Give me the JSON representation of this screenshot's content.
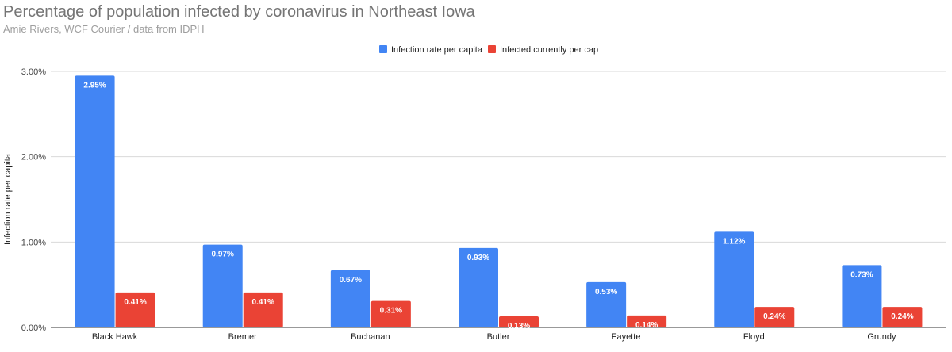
{
  "chart_data": {
    "type": "bar",
    "title": "Percentage of population infected by coronavirus in Northeast Iowa",
    "subtitle": "Amie Rivers, WCF Courier / data from IDPH",
    "xlabel": "",
    "ylabel": "Infection rate per capita",
    "ylim": [
      0,
      3
    ],
    "yticks": [
      "0.00%",
      "1.00%",
      "2.00%",
      "3.00%"
    ],
    "grid": true,
    "legend_position": "top-center",
    "categories": [
      "Black Hawk",
      "Bremer",
      "Buchanan",
      "Butler",
      "Fayette",
      "Floyd",
      "Grundy"
    ],
    "series": [
      {
        "name": "Infection rate per capita",
        "color": "#4285f4",
        "values": [
          2.95,
          0.97,
          0.67,
          0.93,
          0.53,
          1.12,
          0.73
        ],
        "labels": [
          "2.95%",
          "0.97%",
          "0.67%",
          "0.93%",
          "0.53%",
          "1.12%",
          "0.73%"
        ]
      },
      {
        "name": "Infected currently per cap",
        "color": "#ea4335",
        "values": [
          0.41,
          0.41,
          0.31,
          0.13,
          0.14,
          0.24,
          0.24
        ],
        "labels": [
          "0.41%",
          "0.41%",
          "0.31%",
          "0.13%",
          "0.14%",
          "0.24%",
          "0.24%"
        ]
      }
    ]
  }
}
